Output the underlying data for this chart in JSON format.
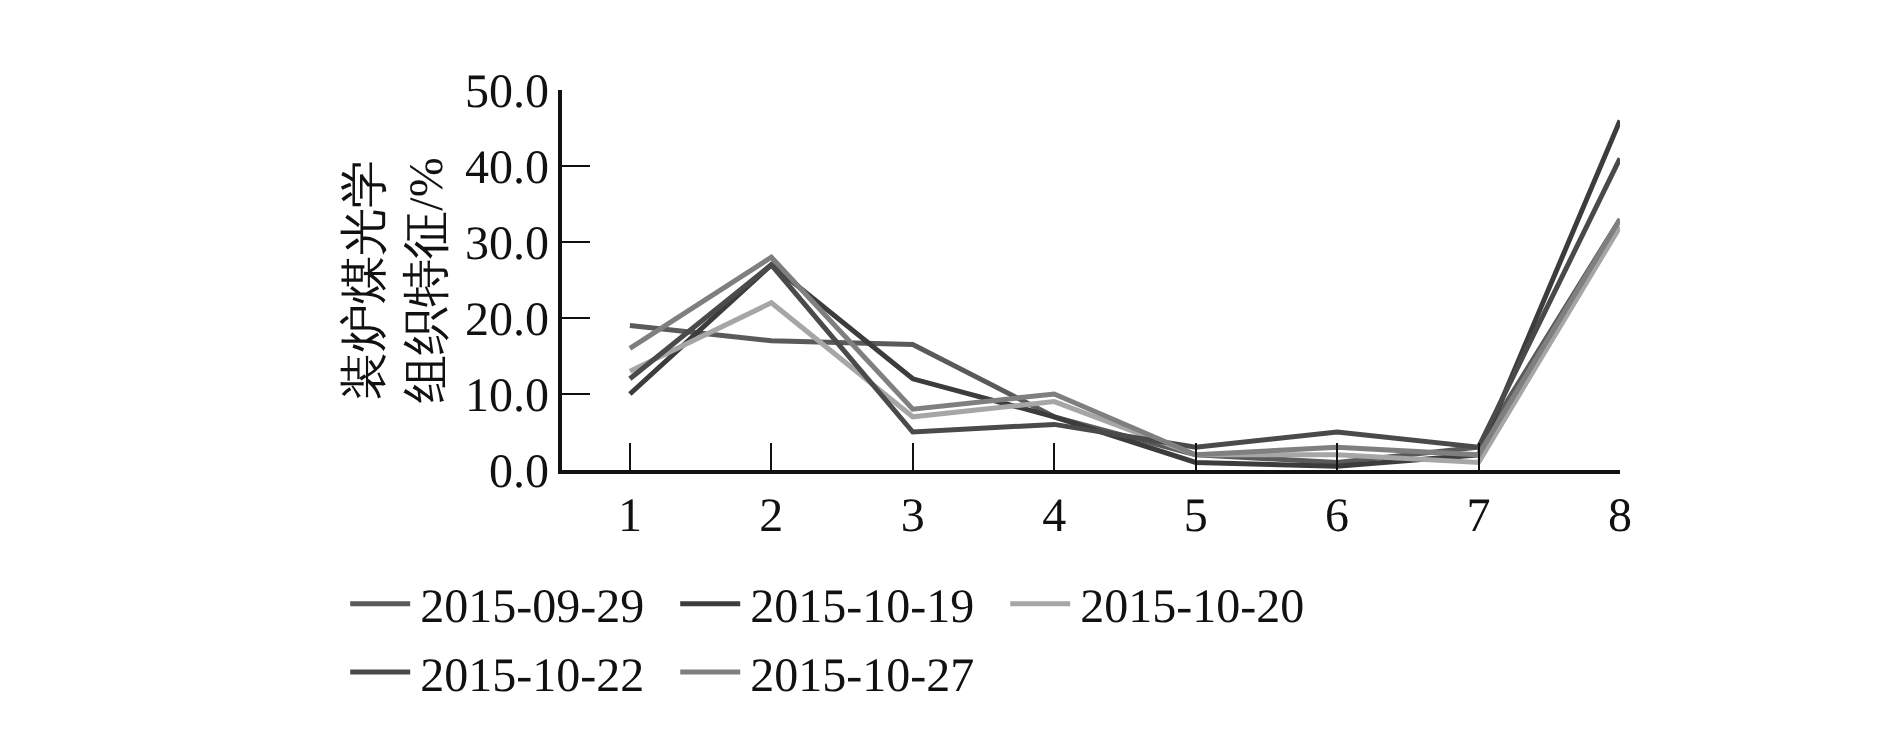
{
  "chart_data": {
    "type": "line",
    "ylabel": "装炉煤光学组织特征/%",
    "x": [
      1,
      2,
      3,
      4,
      5,
      6,
      7,
      8
    ],
    "xlim": [
      0.52,
      8
    ],
    "xticks": [
      1,
      2,
      3,
      4,
      5,
      6,
      7,
      8
    ],
    "ylim": [
      0,
      50
    ],
    "yticks": [
      {
        "value": 0,
        "label": "0.0"
      },
      {
        "value": 10,
        "label": "10.0"
      },
      {
        "value": 20,
        "label": "20.0"
      },
      {
        "value": 30,
        "label": "30.0"
      },
      {
        "value": 40,
        "label": "40.0"
      },
      {
        "value": 50,
        "label": "50.0"
      }
    ],
    "grid": false,
    "legend": "bottom",
    "marker": "none",
    "line_style": "solid",
    "series": [
      {
        "name": "2015-09-29",
        "color": "#5a5a5a",
        "values": [
          19,
          17,
          16.5,
          7,
          2,
          1,
          3,
          33
        ]
      },
      {
        "name": "2015-10-19",
        "color": "#3c3c3c",
        "values": [
          10,
          27,
          12,
          7,
          1,
          0.5,
          2,
          46
        ]
      },
      {
        "name": "2015-10-20",
        "color": "#a6a6a6",
        "values": [
          13,
          22,
          7,
          9,
          2,
          2,
          1,
          32
        ]
      },
      {
        "name": "2015-10-22",
        "color": "#4a4a4a",
        "values": [
          12,
          27,
          5,
          6,
          3,
          5,
          3,
          41
        ]
      },
      {
        "name": "2015-10-27",
        "color": "#7f7f7f",
        "values": [
          16,
          28,
          8,
          10,
          2,
          3,
          2,
          33
        ]
      }
    ]
  }
}
